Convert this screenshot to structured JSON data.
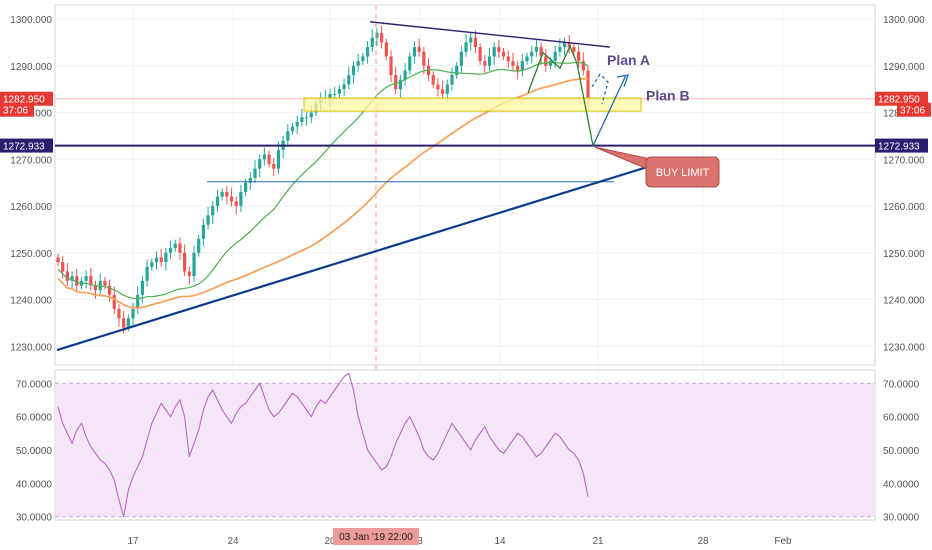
{
  "chart_data": [
    {
      "type": "candlestick",
      "title": "",
      "y_ticks": [
        1230,
        1240,
        1250,
        1260,
        1270,
        1280,
        1290,
        1300
      ],
      "ylim": [
        1226,
        1303
      ],
      "x_ticks": [
        "17",
        "24",
        "20",
        "3",
        "14",
        "21",
        "28",
        "Feb"
      ],
      "crosshair_time_label": "03 Jan '19   22:00",
      "price_labels": [
        {
          "text": "1282.950",
          "value": 1282.95,
          "color": "#e53935"
        },
        {
          "text": "37:06",
          "value": 1280.6,
          "color": "#e53935"
        },
        {
          "text": "1272.933",
          "value": 1272.933,
          "color": "#2b1e6e"
        }
      ],
      "annotations": [
        {
          "text": "Plan A",
          "color": "#5b4b8a"
        },
        {
          "text": "Plan B",
          "color": "#5b4b8a"
        },
        {
          "text": "BUY LIMIT",
          "color": "#c0504d"
        }
      ],
      "candles_close": [
        1248,
        1246,
        1244,
        1245,
        1243,
        1244,
        1245,
        1243,
        1242,
        1244,
        1243,
        1241,
        1238,
        1236,
        1234,
        1236,
        1238,
        1241,
        1244,
        1247,
        1248,
        1249,
        1248,
        1250,
        1251,
        1252,
        1250,
        1246,
        1245,
        1250,
        1253,
        1256,
        1258,
        1260,
        1262,
        1263,
        1262,
        1261,
        1260,
        1263,
        1265,
        1266,
        1268,
        1270,
        1271,
        1269,
        1268,
        1272,
        1274,
        1276,
        1277,
        1278,
        1279,
        1279,
        1280,
        1282,
        1283,
        1283,
        1284,
        1284,
        1285,
        1286,
        1288,
        1290,
        1291,
        1292,
        1294,
        1296,
        1297,
        1295,
        1292,
        1288,
        1285,
        1287,
        1289,
        1292,
        1294,
        1293,
        1290,
        1288,
        1286,
        1285,
        1284,
        1286,
        1288,
        1290,
        1293,
        1295,
        1296,
        1294,
        1291,
        1290,
        1292,
        1294,
        1293,
        1292,
        1291,
        1290,
        1289,
        1291,
        1292,
        1293,
        1294,
        1292,
        1290,
        1291,
        1293,
        1294,
        1295,
        1294,
        1293,
        1291,
        1289,
        1283
      ],
      "ma_fast_label": "",
      "rsi": {
        "y_ticks": [
          30,
          40,
          50,
          60,
          70
        ],
        "ylim": [
          29,
          74
        ],
        "band": [
          30,
          70
        ],
        "values": [
          63,
          58,
          55,
          52,
          56,
          58,
          54,
          51,
          49,
          47,
          46,
          44,
          41,
          35,
          30,
          38,
          42,
          45,
          48,
          53,
          58,
          61,
          64,
          62,
          60,
          63,
          65,
          60,
          48,
          52,
          56,
          62,
          66,
          68,
          65,
          62,
          60,
          58,
          61,
          63,
          64,
          66,
          68,
          70,
          66,
          62,
          60,
          61,
          63,
          65,
          67,
          66,
          64,
          62,
          60,
          63,
          65,
          64,
          66,
          68,
          70,
          72,
          73,
          68,
          60,
          55,
          50,
          48,
          46,
          44,
          45,
          48,
          52,
          55,
          58,
          60,
          57,
          54,
          50,
          48,
          47,
          49,
          52,
          55,
          58,
          56,
          54,
          52,
          50,
          53,
          55,
          57,
          54,
          52,
          50,
          49,
          51,
          53,
          55,
          54,
          52,
          50,
          48,
          49,
          51,
          53,
          55,
          54,
          52,
          50,
          49,
          47,
          43,
          36
        ]
      }
    }
  ]
}
